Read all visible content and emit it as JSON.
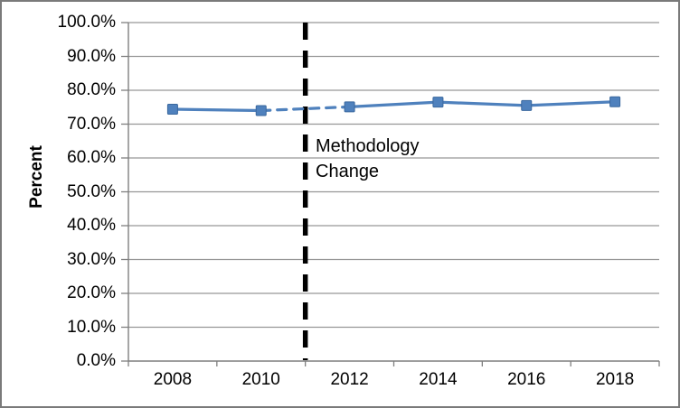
{
  "frame": {
    "background": "#FFFFFF",
    "border_color": "#7A7A7A"
  },
  "colors": {
    "grid": "#969696",
    "axis": "#7F7F7F",
    "tick": "#7F7F7F",
    "text": "#000000"
  },
  "chart_data": {
    "type": "line",
    "title": "",
    "xlabel": "",
    "ylabel": "Percent",
    "categories": [
      "2008",
      "2010",
      "2012",
      "2014",
      "2016",
      "2018"
    ],
    "series": [
      {
        "name": "Percent",
        "color": "#4F81BD",
        "marker": "square",
        "marker_size": 11,
        "values": [
          74.4,
          74.0,
          75.1,
          76.5,
          75.5,
          76.6
        ],
        "solid_segments": [
          [
            0,
            1
          ],
          [
            2,
            5
          ]
        ],
        "dashed_segments": [
          [
            1,
            2
          ]
        ]
      }
    ],
    "ylim": [
      0,
      100
    ],
    "ytick_step": 10,
    "ytick_labels": [
      "0.0%",
      "10.0%",
      "20.0%",
      "30.0%",
      "40.0%",
      "50.0%",
      "60.0%",
      "70.0%",
      "80.0%",
      "90.0%",
      "100.0%"
    ],
    "grid": true,
    "legend_position": "none",
    "vline": {
      "x_year": 2011,
      "first_year": 2008,
      "year_step": 2,
      "color": "#000000",
      "style": "dashed"
    },
    "annotation": {
      "text": "Methodology Change",
      "x_year": 2011
    }
  }
}
